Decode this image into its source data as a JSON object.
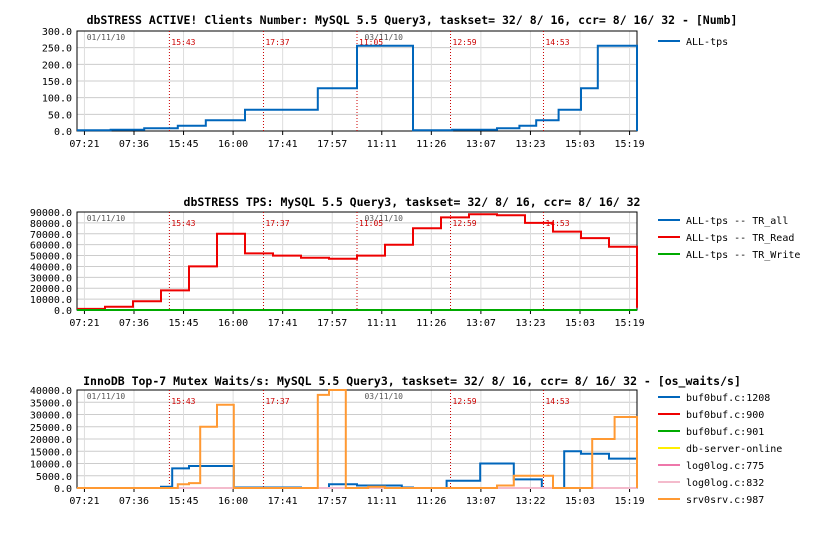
{
  "chart_data": [
    {
      "type": "line",
      "title": "dbSTRESS ACTIVE! Clients Number: MySQL 5.5 Query3, taskset= 32/ 8/ 16, ccr= 8/ 16/ 32 - [Numb]",
      "ylim": [
        0,
        300
      ],
      "yticks": [
        "300.0",
        "250.0",
        "200.0",
        "150.0",
        "100.0",
        "50.0",
        "0.0"
      ],
      "xticks": [
        "07:21",
        "07:36",
        "15:45",
        "16:00",
        "17:41",
        "17:57",
        "11:11",
        "11:26",
        "13:07",
        "13:23",
        "15:03",
        "15:19"
      ],
      "dates": [
        "01/11/10",
        "03/11/10"
      ],
      "markers": [
        "15:43",
        "17:37",
        "11:05",
        "12:59",
        "14:53"
      ],
      "grid": true,
      "legend_position": "right",
      "series": [
        {
          "name": "ALL-tps",
          "color": "#0066bb",
          "x": [
            0,
            0.04,
            0.06,
            0.1,
            0.12,
            0.15,
            0.18,
            0.2,
            0.23,
            0.27,
            0.3,
            0.4,
            0.43,
            0.46,
            0.5,
            0.55,
            0.6,
            0.63,
            0.67,
            0.72,
            0.75,
            0.79,
            0.82,
            0.86,
            0.9,
            0.93,
            0.97,
            1.0
          ],
          "values": [
            2,
            2,
            4,
            4,
            8,
            8,
            16,
            16,
            32,
            32,
            64,
            64,
            128,
            128,
            256,
            256,
            2,
            2,
            4,
            4,
            8,
            16,
            32,
            64,
            128,
            256,
            256,
            0
          ]
        }
      ]
    },
    {
      "type": "line",
      "title": "dbSTRESS TPS: MySQL 5.5 Query3, taskset= 32/ 8/ 16, ccr= 8/ 16/ 32",
      "ylim": [
        0,
        90000
      ],
      "yticks": [
        "90000.0",
        "80000.0",
        "70000.0",
        "60000.0",
        "50000.0",
        "40000.0",
        "30000.0",
        "20000.0",
        "10000.0",
        "0.0"
      ],
      "xticks": [
        "07:21",
        "07:36",
        "15:45",
        "16:00",
        "17:41",
        "17:57",
        "11:11",
        "11:26",
        "13:07",
        "13:23",
        "15:03",
        "15:19"
      ],
      "dates": [
        "01/11/10",
        "03/11/10"
      ],
      "markers": [
        "15:43",
        "17:37",
        "11:05",
        "12:59",
        "14:53"
      ],
      "grid": true,
      "legend_position": "right",
      "series": [
        {
          "name": "ALL-tps -- TR_all",
          "color": "#0066bb",
          "values": [
            0,
            0
          ]
        },
        {
          "name": "ALL-tps -- TR_Read",
          "color": "#ee0000",
          "x": [
            0,
            0.05,
            0.1,
            0.15,
            0.2,
            0.25,
            0.3,
            0.35,
            0.4,
            0.45,
            0.5,
            0.55,
            0.6,
            0.65,
            0.7,
            0.75,
            0.8,
            0.85,
            0.9,
            0.95,
            1.0
          ],
          "values": [
            1000,
            3000,
            8000,
            18000,
            40000,
            70000,
            52000,
            50000,
            48000,
            47000,
            50000,
            60000,
            75000,
            85000,
            88000,
            87000,
            80000,
            72000,
            66000,
            58000,
            2000
          ]
        },
        {
          "name": "ALL-tps -- TR_Write",
          "color": "#00aa00",
          "values": [
            0,
            0
          ]
        }
      ]
    },
    {
      "type": "line",
      "title": "InnoDB Top-7 Mutex Waits/s: MySQL 5.5 Query3, taskset= 32/ 8/ 16, ccr= 8/ 16/ 32 - [os_waits/s]",
      "ylim": [
        0,
        40000
      ],
      "yticks": [
        "40000.0",
        "35000.0",
        "30000.0",
        "25000.0",
        "20000.0",
        "15000.0",
        "10000.0",
        "5000.0",
        "0.0"
      ],
      "xticks": [
        "07:21",
        "07:36",
        "15:45",
        "16:00",
        "17:41",
        "17:57",
        "11:11",
        "11:26",
        "13:07",
        "13:22",
        "15:03",
        "15:19"
      ],
      "dates": [
        "01/11/10",
        "03/11/10"
      ],
      "markers": [
        "15:43",
        "17:37",
        "12:59",
        "14:53"
      ],
      "grid": true,
      "legend_position": "right",
      "series": [
        {
          "name": "buf0buf.c:1208",
          "color": "#0066bb",
          "x": [
            0,
            0.1,
            0.15,
            0.17,
            0.2,
            0.28,
            0.4,
            0.45,
            0.5,
            0.58,
            0.6,
            0.66,
            0.72,
            0.78,
            0.83,
            0.87,
            0.9,
            0.95,
            1.0
          ],
          "values": [
            0,
            0,
            500,
            8000,
            9000,
            200,
            0,
            1500,
            1000,
            200,
            0,
            3000,
            10000,
            3500,
            0,
            15000,
            14000,
            12000,
            0
          ]
        },
        {
          "name": "buf0buf.c:900",
          "color": "#ee0000",
          "values": [
            0,
            0
          ]
        },
        {
          "name": "buf0buf.c:901",
          "color": "#00aa00",
          "values": [
            0,
            0
          ]
        },
        {
          "name": "db-server-online",
          "color": "#ffee00",
          "values": [
            0,
            0
          ]
        },
        {
          "name": "log0log.c:775",
          "color": "#ee77aa",
          "values": [
            0,
            0
          ]
        },
        {
          "name": "log0log.c:832",
          "color": "#f4bbcc",
          "values": [
            0,
            0
          ]
        },
        {
          "name": "srv0srv.c:987",
          "color": "#ff9933",
          "x": [
            0,
            0.15,
            0.18,
            0.2,
            0.22,
            0.25,
            0.28,
            0.4,
            0.43,
            0.45,
            0.48,
            0.5,
            0.52,
            0.55,
            0.58,
            0.6,
            0.75,
            0.78,
            0.85,
            0.88,
            0.92,
            0.96,
            1.0
          ],
          "values": [
            0,
            0,
            1500,
            2000,
            25000,
            34000,
            0,
            0,
            38000,
            40000,
            0,
            0,
            500,
            0,
            0,
            0,
            1000,
            5000,
            0,
            0,
            20000,
            29000,
            0
          ]
        }
      ]
    }
  ]
}
